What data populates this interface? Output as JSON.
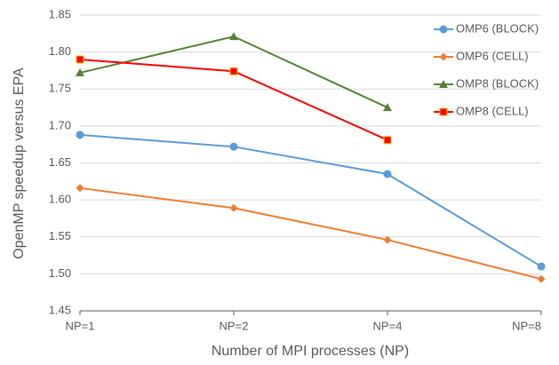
{
  "chart_data": {
    "type": "line",
    "x_label": "Number of MPI processes (NP)",
    "y_label": "OpenMP speedup versus EPA",
    "categories": [
      "NP=1",
      "NP=2",
      "NP=4",
      "NP=8"
    ],
    "series": [
      {
        "name": "OMP6 (BLOCK)",
        "color": "#5b9bd5",
        "marker": "circle",
        "values": [
          1.688,
          1.672,
          1.635,
          1.51
        ]
      },
      {
        "name": "OMP6 (CELL)",
        "color": "#ed7d31",
        "marker": "diamond",
        "values": [
          1.616,
          1.589,
          1.546,
          1.493
        ]
      },
      {
        "name": "OMP8 (BLOCK)",
        "color": "#548235",
        "marker": "triangle",
        "values": [
          1.772,
          1.821,
          1.725,
          null
        ]
      },
      {
        "name": "OMP8 (CELL)",
        "color": "#ff0000",
        "marker": "square",
        "values": [
          1.79,
          1.774,
          1.681,
          null
        ]
      }
    ],
    "ylim": [
      1.45,
      1.85
    ],
    "yticks": [
      1.45,
      {
        "value": 1.5,
        "label": "1.50"
      },
      1.55,
      {
        "value": 1.6,
        "label": "1.60"
      },
      1.65,
      {
        "value": 1.7,
        "label": "1.70"
      },
      1.75,
      {
        "value": 1.8,
        "label": "1.80"
      },
      1.85
    ],
    "grid": true,
    "legend": "top-right"
  }
}
